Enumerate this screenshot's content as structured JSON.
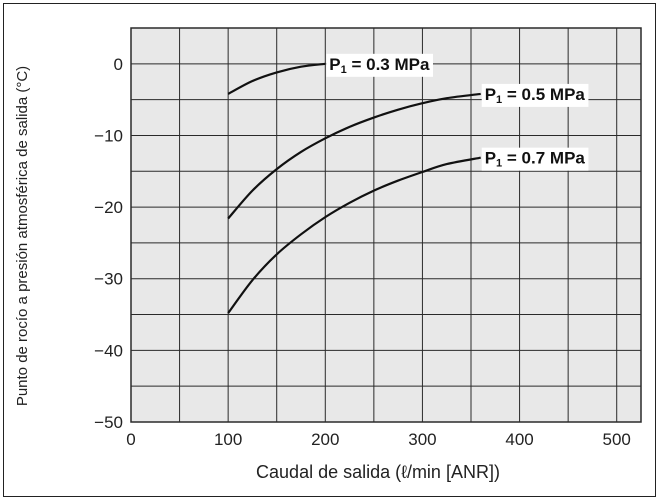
{
  "chart_data": {
    "type": "line",
    "xlabel": "Caudal de salida (ℓ/min [ANR])",
    "ylabel": "Punto de rocío a presión atmosférica de salida (°C)",
    "xlim": [
      0,
      525
    ],
    "ylim": [
      -50,
      5
    ],
    "x_ticks": [
      "0",
      "100",
      "200",
      "300",
      "400",
      "500"
    ],
    "y_ticks": [
      "0",
      "−10",
      "−20",
      "−30",
      "−40",
      "−50"
    ],
    "x_tick_values": [
      0,
      100,
      200,
      300,
      400,
      500
    ],
    "y_tick_values": [
      0,
      -10,
      -20,
      -30,
      -40,
      -50
    ],
    "grid": true,
    "series": [
      {
        "name": "P1 = 0.3 MPa",
        "label_prefix": "P",
        "label_sub": "1",
        "label_suffix": " = 0.3 MPa",
        "x": [
          100,
          125,
          150,
          175,
          200
        ],
        "y": [
          -4.2,
          -2.4,
          -1.2,
          -0.4,
          0
        ]
      },
      {
        "name": "P1 = 0.5 MPa",
        "label_prefix": "P",
        "label_sub": "1",
        "label_suffix": " = 0.5 MPa",
        "x": [
          100,
          125,
          150,
          175,
          200,
          225,
          250,
          275,
          300,
          325,
          360
        ],
        "y": [
          -21.6,
          -17.7,
          -14.7,
          -12.3,
          -10.4,
          -8.8,
          -7.5,
          -6.4,
          -5.5,
          -4.8,
          -4.2
        ]
      },
      {
        "name": "P1 = 0.7 MPa",
        "label_prefix": "P",
        "label_sub": "1",
        "label_suffix": " = 0.7 MPa",
        "x": [
          100,
          125,
          150,
          175,
          200,
          225,
          250,
          275,
          300,
          325,
          360
        ],
        "y": [
          -34.8,
          -30.2,
          -26.6,
          -23.8,
          -21.4,
          -19.4,
          -17.7,
          -16.3,
          -15.1,
          -14.0,
          -13.1
        ]
      }
    ]
  },
  "colors": {
    "plot_background": "#e8e8e8",
    "grid": "#2a2a2a",
    "line": "#111111"
  }
}
